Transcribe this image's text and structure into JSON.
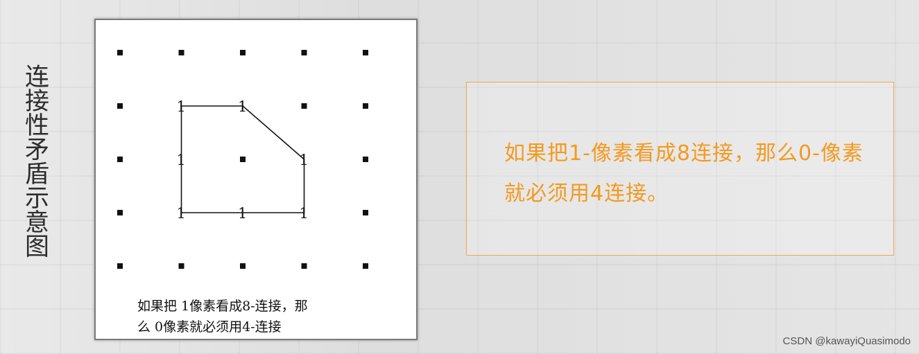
{
  "side_title": "连接性矛盾示意图",
  "diagram": {
    "dots": [
      [
        0,
        0
      ],
      [
        1,
        0
      ],
      [
        2,
        0
      ],
      [
        3,
        0
      ],
      [
        4,
        0
      ],
      [
        0,
        1
      ],
      [
        3,
        1
      ],
      [
        4,
        1
      ],
      [
        0,
        2
      ],
      [
        2,
        2
      ],
      [
        4,
        2
      ],
      [
        0,
        3
      ],
      [
        4,
        3
      ],
      [
        0,
        4
      ],
      [
        1,
        4
      ],
      [
        2,
        4
      ],
      [
        3,
        4
      ],
      [
        4,
        4
      ]
    ],
    "ones": [
      {
        "col": 1,
        "row": 1,
        "label": "1"
      },
      {
        "col": 2,
        "row": 1,
        "label": "1"
      },
      {
        "col": 1,
        "row": 2,
        "label": "1"
      },
      {
        "col": 3,
        "row": 2,
        "label": "1"
      },
      {
        "col": 1,
        "row": 3,
        "label": "1"
      },
      {
        "col": 2,
        "row": 3,
        "label": "1"
      },
      {
        "col": 3,
        "row": 3,
        "label": "1"
      }
    ],
    "outline": [
      [
        1,
        1
      ],
      [
        2,
        1
      ],
      [
        3,
        2
      ],
      [
        3,
        3
      ],
      [
        1,
        3
      ]
    ]
  },
  "caption": {
    "line1": "如果把 1像素看成8-连接，那",
    "line2": "么 0像素就必须用4-连接"
  },
  "callout": {
    "text": "如果把1-像素看成8连接，那么0-像素就必须用4连接。",
    "border_color": "#f3a64a",
    "text_color": "#f39a1e"
  },
  "watermark": "CSDN @kawayiQuasimodo"
}
